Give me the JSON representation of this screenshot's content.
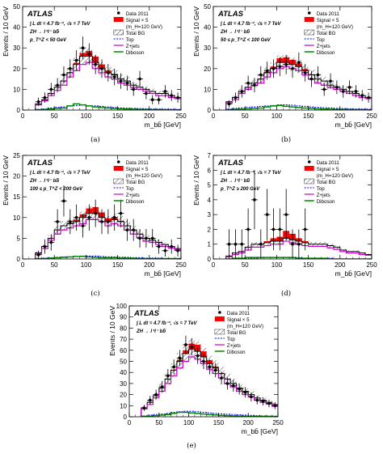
{
  "colors": {
    "data": "#000000",
    "signal": "#ff0000",
    "total_bg": "#000000",
    "top": "#0000ff",
    "zjets": "#cc00cc",
    "diboson": "#008800"
  },
  "chart_data": [
    {
      "type": "bar",
      "panel_label": "(a)",
      "atlas_label": "ATLAS",
      "lumi_text": "∫ L dt = 4.7 fb⁻¹, √s = 7 TeV",
      "process_text": "ZH → l⁺l⁻ bb̄",
      "region_text": "p_T^Z < 50 GeV",
      "xlabel": "m_bb̄  [GeV]",
      "ylabel": "Events / 10 GeV",
      "xlim": [
        0,
        250
      ],
      "ylim": [
        0,
        50
      ],
      "xticks": [
        0,
        50,
        100,
        150,
        200,
        250
      ],
      "yticks": [
        0,
        10,
        20,
        30,
        40,
        50
      ],
      "legend": [
        "Data 2011",
        "Signal × 5",
        "(m_H=120 GeV)",
        "Total BG",
        "Top",
        "Z+jets",
        "Diboson"
      ],
      "bin_edges": [
        20,
        30,
        40,
        50,
        60,
        70,
        80,
        90,
        100,
        110,
        120,
        130,
        140,
        150,
        160,
        170,
        180,
        190,
        200,
        210,
        220,
        230,
        240,
        250
      ],
      "series": [
        {
          "name": "Data 2011",
          "values": [
            4,
            6,
            10,
            12,
            17,
            20,
            24,
            30,
            27,
            22,
            20,
            18,
            16,
            14,
            13,
            10,
            15,
            8,
            5,
            5,
            9,
            7,
            6
          ]
        },
        {
          "name": "Total BG",
          "values": [
            3,
            5,
            8,
            11,
            14,
            18,
            22,
            26,
            26,
            23,
            20,
            18,
            17,
            15,
            14,
            12,
            11,
            10,
            9,
            8,
            8,
            7,
            6
          ]
        },
        {
          "name": "Z+jets",
          "values": [
            2.5,
            4.5,
            7,
            9.5,
            12,
            16,
            19,
            22,
            23,
            20,
            18,
            16,
            15,
            13,
            12,
            11,
            10,
            9,
            8,
            7,
            7,
            6,
            5.5
          ]
        },
        {
          "name": "Top",
          "values": [
            0.3,
            0.5,
            1,
            1.3,
            1.5,
            2,
            2.2,
            2.5,
            2,
            2,
            1.8,
            1.5,
            1.2,
            1,
            0.9,
            0.8,
            0.7,
            0.6,
            0.5,
            0.5,
            0.4,
            0.4,
            0.3
          ]
        },
        {
          "name": "Diboson",
          "values": [
            0.2,
            0.3,
            0.5,
            0.8,
            1,
            2,
            3,
            2.5,
            2,
            1.5,
            1.2,
            1,
            0.8,
            0.6,
            0.5,
            0.4,
            0.3,
            0.3,
            0.2,
            0.2,
            0.2,
            0.1,
            0.1
          ]
        },
        {
          "name": "Signal × 5",
          "values": [
            0,
            0,
            0,
            0,
            0,
            0.3,
            0.8,
            1.5,
            2.5,
            2.8,
            2,
            1.2,
            0.5,
            0.2,
            0,
            0,
            0,
            0,
            0,
            0,
            0,
            0,
            0
          ]
        }
      ]
    },
    {
      "type": "bar",
      "panel_label": "(b)",
      "atlas_label": "ATLAS",
      "lumi_text": "∫ L dt = 4.7 fb⁻¹, √s = 7 TeV",
      "process_text": "ZH → l⁺l⁻ bb̄",
      "region_text": "50 ≤ p_T^Z < 100 GeV",
      "xlabel": "m_bb̄  [GeV]",
      "ylabel": "Events / 10 GeV",
      "xlim": [
        0,
        250
      ],
      "ylim": [
        0,
        50
      ],
      "xticks": [
        0,
        50,
        100,
        150,
        200,
        250
      ],
      "yticks": [
        0,
        10,
        20,
        30,
        40,
        50
      ],
      "legend": [
        "Data 2011",
        "Signal × 5",
        "(m_H=120 GeV)",
        "Total BG",
        "Top",
        "Z+jets",
        "Diboson"
      ],
      "bin_edges": [
        20,
        30,
        40,
        50,
        60,
        70,
        80,
        90,
        100,
        110,
        120,
        130,
        140,
        150,
        160,
        170,
        180,
        190,
        200,
        210,
        220,
        230,
        240,
        250
      ],
      "series": [
        {
          "name": "Data 2011",
          "values": [
            3,
            6,
            9,
            13,
            12,
            17,
            19,
            20,
            21,
            22,
            20,
            23,
            18,
            15,
            17,
            10,
            14,
            11,
            9,
            11,
            9,
            7,
            6
          ]
        },
        {
          "name": "Total BG",
          "values": [
            4,
            6,
            9,
            11,
            13,
            15,
            18,
            20,
            23,
            23,
            22,
            21,
            19,
            17,
            15,
            14,
            12,
            11,
            10,
            9,
            8,
            7,
            6
          ]
        },
        {
          "name": "Z+jets",
          "values": [
            3.5,
            5,
            8,
            10,
            12,
            13,
            16,
            18,
            20,
            21,
            20,
            19,
            17,
            15,
            13,
            12,
            11,
            10,
            9,
            8,
            7,
            6,
            5.5
          ]
        },
        {
          "name": "Top",
          "values": [
            0.5,
            0.8,
            1,
            1.3,
            1.5,
            1.8,
            2,
            2.2,
            2.5,
            2.5,
            2.3,
            2,
            1.8,
            1.5,
            1.3,
            1.1,
            1,
            0.8,
            0.7,
            0.6,
            0.5,
            0.5,
            0.4
          ]
        },
        {
          "name": "Diboson",
          "values": [
            0.2,
            0.3,
            0.4,
            0.6,
            0.8,
            1,
            1.5,
            2,
            2.2,
            1.8,
            1.5,
            1.2,
            1,
            0.8,
            0.6,
            0.5,
            0.4,
            0.3,
            0.3,
            0.2,
            0.2,
            0.2,
            0.1
          ]
        },
        {
          "name": "Signal × 5",
          "values": [
            0,
            0,
            0,
            0,
            0,
            0.2,
            0.5,
            1,
            2,
            2.5,
            2.2,
            1.5,
            0.8,
            0.3,
            0,
            0,
            0,
            0,
            0,
            0,
            0,
            0,
            0
          ]
        }
      ]
    },
    {
      "type": "bar",
      "panel_label": "(c)",
      "atlas_label": "ATLAS",
      "lumi_text": "∫ L dt = 4.7 fb⁻¹, √s = 7 TeV",
      "process_text": "ZH → l⁺l⁻ bb̄",
      "region_text": "100 ≤ p_T^Z < 200 GeV",
      "xlabel": "m_bb̄  [GeV]",
      "ylabel": "Events / 10 GeV",
      "xlim": [
        0,
        250
      ],
      "ylim": [
        0,
        25
      ],
      "xticks": [
        0,
        50,
        100,
        150,
        200,
        250
      ],
      "yticks": [
        0,
        5,
        10,
        15,
        20,
        25
      ],
      "legend": [
        "Data 2011",
        "Signal × 5",
        "(m_H=120 GeV)",
        "Total BG",
        "Top",
        "Z+jets",
        "Diboson"
      ],
      "bin_edges": [
        20,
        30,
        40,
        50,
        60,
        70,
        80,
        90,
        100,
        110,
        120,
        130,
        140,
        150,
        160,
        170,
        180,
        190,
        200,
        210,
        220,
        230,
        240,
        250
      ],
      "series": [
        {
          "name": "Data 2011",
          "values": [
            1,
            3,
            4,
            9,
            14,
            9,
            10,
            8,
            10,
            11,
            9,
            9,
            10,
            11,
            7,
            7,
            5,
            5,
            5,
            3,
            2,
            3,
            2
          ]
        },
        {
          "name": "Total BG",
          "values": [
            1.5,
            3,
            5,
            7,
            8,
            8.5,
            9,
            10,
            11,
            11,
            10,
            9,
            9.5,
            9,
            8,
            7,
            6,
            5,
            4.5,
            4,
            3.5,
            3,
            2.5
          ]
        },
        {
          "name": "Z+jets",
          "values": [
            1.2,
            2.5,
            4.5,
            6,
            7,
            7.5,
            8,
            8.5,
            9.5,
            9.5,
            9,
            8,
            8.5,
            8,
            7,
            6,
            5.2,
            4.3,
            4,
            3.5,
            3,
            2.6,
            2.2
          ]
        },
        {
          "name": "Top",
          "values": [
            0.1,
            0.2,
            0.3,
            0.4,
            0.5,
            0.5,
            0.6,
            0.7,
            0.7,
            0.7,
            0.6,
            0.5,
            0.5,
            0.4,
            0.4,
            0.3,
            0.3,
            0.2,
            0.2,
            0.2,
            0.1,
            0.1,
            0.1
          ]
        },
        {
          "name": "Diboson",
          "values": [
            0.1,
            0.1,
            0.2,
            0.3,
            0.4,
            0.5,
            0.6,
            0.6,
            0.5,
            0.4,
            0.3,
            0.3,
            0.3,
            0.2,
            0.2,
            0.2,
            0.1,
            0.1,
            0.1,
            0.1,
            0.1,
            0.1,
            0.1
          ]
        },
        {
          "name": "Signal × 5",
          "values": [
            0,
            0,
            0,
            0,
            0,
            0.2,
            0.5,
            0.8,
            1.2,
            1.5,
            1.2,
            0.8,
            0.4,
            0.2,
            0,
            0,
            0,
            0,
            0,
            0,
            0,
            0,
            0
          ]
        }
      ]
    },
    {
      "type": "bar",
      "panel_label": "(d)",
      "atlas_label": "ATLAS",
      "lumi_text": "∫ L dt = 4.7 fb⁻¹, √s = 7 TeV",
      "process_text": "ZH → l⁺l⁻ bb̄",
      "region_text": "p_T^Z ≥ 200 GeV",
      "xlabel": "m_bb̄  [GeV]",
      "ylabel": "Events / 10 GeV",
      "xlim": [
        0,
        250
      ],
      "ylim": [
        0,
        7
      ],
      "xticks": [
        0,
        50,
        100,
        150,
        200,
        250
      ],
      "yticks": [
        0,
        1,
        2,
        3,
        4,
        5,
        6,
        7
      ],
      "legend": [
        "Data 2011",
        "Signal × 5",
        "(m_H=120 GeV)",
        "Total BG",
        "Top",
        "Z+jets",
        "Diboson"
      ],
      "bin_edges": [
        20,
        30,
        40,
        50,
        60,
        70,
        80,
        90,
        100,
        110,
        120,
        130,
        140,
        150,
        160,
        170,
        180,
        190,
        200,
        210,
        220,
        230,
        240,
        250
      ],
      "series": [
        {
          "name": "Data 2011",
          "values": [
            1,
            1,
            1,
            2,
            4,
            1,
            3,
            2,
            2,
            3,
            1,
            1,
            2,
            0,
            0,
            0,
            0,
            0,
            0,
            0,
            0,
            0,
            0
          ]
        },
        {
          "name": "Total BG",
          "values": [
            0.2,
            0.4,
            0.5,
            0.8,
            1,
            1,
            1.1,
            1.2,
            1.2,
            1.4,
            1.3,
            1.2,
            1.1,
            1,
            1,
            1,
            0.9,
            0.8,
            0.6,
            0.5,
            0.5,
            0.4,
            0.3
          ]
        },
        {
          "name": "Z+jets",
          "values": [
            0.15,
            0.3,
            0.4,
            0.6,
            0.8,
            0.8,
            0.9,
            1,
            1,
            1.2,
            1.1,
            1,
            0.9,
            0.85,
            0.85,
            0.85,
            0.75,
            0.65,
            0.5,
            0.4,
            0.4,
            0.3,
            0.25
          ]
        },
        {
          "name": "Top",
          "values": [
            0,
            0,
            0.05,
            0.05,
            0.05,
            0.1,
            0.1,
            0.1,
            0.1,
            0.1,
            0.1,
            0.1,
            0.05,
            0.05,
            0.05,
            0.05,
            0.05,
            0,
            0,
            0,
            0,
            0,
            0
          ]
        },
        {
          "name": "Diboson",
          "values": [
            0,
            0.05,
            0.05,
            0.1,
            0.1,
            0.1,
            0.1,
            0.1,
            0.1,
            0.1,
            0.1,
            0.05,
            0.05,
            0.05,
            0.05,
            0.05,
            0,
            0,
            0,
            0,
            0,
            0,
            0
          ]
        },
        {
          "name": "Signal × 5",
          "values": [
            0,
            0,
            0,
            0,
            0,
            0,
            0.1,
            0.2,
            0.3,
            0.5,
            0.4,
            0.2,
            0.1,
            0,
            0,
            0,
            0,
            0,
            0,
            0,
            0,
            0,
            0
          ]
        }
      ]
    },
    {
      "type": "bar",
      "panel_label": "(e)",
      "atlas_label": "ATLAS",
      "lumi_text": "∫ L dt = 4.7 fb⁻¹, √s = 7 TeV",
      "process_text": "ZH → l⁺l⁻ bb̄",
      "region_text": "",
      "xlabel": "m_bb̄  [GeV]",
      "ylabel": "Events / 10 GeV",
      "xlim": [
        0,
        250
      ],
      "ylim": [
        0,
        100
      ],
      "xticks": [
        0,
        50,
        100,
        150,
        200,
        250
      ],
      "yticks": [
        0,
        10,
        20,
        30,
        40,
        50,
        60,
        70,
        80,
        90,
        100
      ],
      "legend": [
        "Data 2011",
        "Signal × 5",
        "(m_H=120 GeV)",
        "Total BG",
        "Top",
        "Z+jets",
        "Diboson"
      ],
      "bin_edges": [
        20,
        30,
        40,
        50,
        60,
        70,
        80,
        90,
        100,
        110,
        120,
        130,
        140,
        150,
        160,
        170,
        180,
        190,
        200,
        210,
        220,
        230,
        240,
        250
      ],
      "series": [
        {
          "name": "Data 2011",
          "values": [
            8,
            15,
            20,
            27,
            37,
            45,
            53,
            65,
            63,
            55,
            50,
            45,
            42,
            35,
            30,
            28,
            25,
            22,
            18,
            15,
            14,
            12,
            10
          ]
        },
        {
          "name": "Total BG",
          "values": [
            8,
            13,
            19,
            26,
            34,
            42,
            50,
            57,
            61,
            59,
            54,
            48,
            44,
            39,
            34,
            30,
            26,
            23,
            20,
            17,
            15,
            13,
            11
          ]
        },
        {
          "name": "Z+jets",
          "values": [
            7,
            11,
            17,
            23,
            30,
            37,
            44,
            50,
            54,
            52,
            48,
            43,
            39,
            35,
            30,
            27,
            23,
            20,
            18,
            15,
            13,
            11.5,
            9.5
          ]
        },
        {
          "name": "Top",
          "values": [
            0.8,
            1.5,
            2,
            2.5,
            3,
            4,
            4.5,
            5,
            5,
            4.5,
            4,
            3.5,
            3,
            2.5,
            2.2,
            2,
            1.8,
            1.5,
            1.2,
            1,
            0.8,
            0.7,
            0.6
          ]
        },
        {
          "name": "Diboson",
          "values": [
            0.3,
            0.5,
            1,
            1.5,
            2,
            3,
            4,
            4,
            3.5,
            3,
            2.5,
            2,
            1.6,
            1.2,
            1,
            0.8,
            0.6,
            0.5,
            0.4,
            0.3,
            0.3,
            0.2,
            0.2
          ]
        },
        {
          "name": "Signal × 5",
          "values": [
            0,
            0,
            0,
            0,
            0,
            0.5,
            1.5,
            3,
            5,
            6,
            5,
            3,
            1.5,
            0.5,
            0,
            0,
            0,
            0,
            0,
            0,
            0,
            0,
            0
          ]
        }
      ]
    }
  ]
}
